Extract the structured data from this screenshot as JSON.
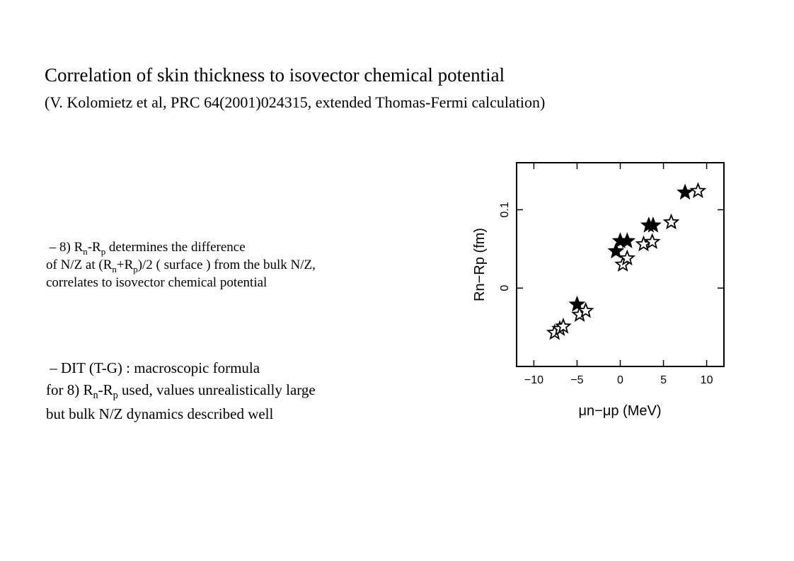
{
  "title": "Correlation of skin thickness to isovector chemical potential",
  "subtitle": "(V. Kolomietz et al, PRC 64(2001)024315, extended Thomas-Fermi calculation)",
  "bullet1": {
    "dash": "–",
    "line1_a": " 8) R",
    "line1_sub1": "n",
    "line1_b": "-R",
    "line1_sub2": "p",
    "line1_c": " determines the difference",
    "line2_a": "of N/Z at (R",
    "line2_sub1": "n",
    "line2_b": "+R",
    "line2_sub2": "p",
    "line2_c": ")/2 ( surface ) from the bulk N/Z,",
    "line3": "correlates to isovector chemical potential"
  },
  "bullet2": {
    "dash": "–",
    "line1": " DIT (T-G) : macroscopic formula",
    "line2_a": "for 8) R",
    "line2_sub1": "n",
    "line2_b": "-R",
    "line2_sub2": "p",
    "line2_c": "  used, values unrealistically large",
    "line3": "but bulk N/Z dynamics described well"
  },
  "chart_data": {
    "type": "scatter",
    "xlabel": "μn−μp (MeV)",
    "ylabel": "Rn−Rp (fm)",
    "xlim": [
      -12,
      12
    ],
    "ylim": [
      -0.1,
      0.16
    ],
    "xticks": [
      -10,
      -5,
      0,
      5,
      10
    ],
    "xtick_labels": [
      "−10",
      "−5",
      "0",
      "5",
      "10"
    ],
    "yticks": [
      0,
      0.1
    ],
    "ytick_labels": [
      "0",
      "0.1"
    ],
    "grid": false,
    "series": [
      {
        "marker": "filled-star",
        "points": [
          {
            "x": -5.0,
            "y": -0.021
          },
          {
            "x": -0.5,
            "y": 0.047
          },
          {
            "x": 0.0,
            "y": 0.06
          },
          {
            "x": 0.8,
            "y": 0.06
          },
          {
            "x": 3.3,
            "y": 0.08
          },
          {
            "x": 3.8,
            "y": 0.08
          },
          {
            "x": 7.5,
            "y": 0.122
          }
        ]
      },
      {
        "marker": "open-star",
        "points": [
          {
            "x": -7.6,
            "y": -0.057
          },
          {
            "x": -7.0,
            "y": -0.052
          },
          {
            "x": -6.6,
            "y": -0.049
          },
          {
            "x": -4.7,
            "y": -0.034
          },
          {
            "x": -4.0,
            "y": -0.029
          },
          {
            "x": 0.3,
            "y": 0.03
          },
          {
            "x": 0.8,
            "y": 0.038
          },
          {
            "x": 2.7,
            "y": 0.056
          },
          {
            "x": 3.7,
            "y": 0.059
          },
          {
            "x": 5.9,
            "y": 0.084
          },
          {
            "x": 9.0,
            "y": 0.124
          }
        ]
      }
    ]
  }
}
